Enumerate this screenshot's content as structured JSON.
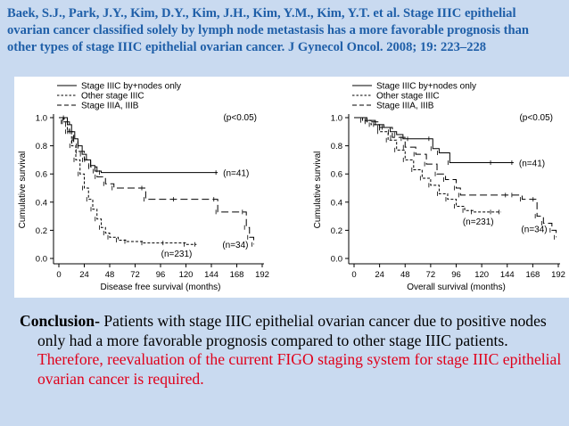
{
  "citation": "Baek, S.J., Park, J.Y., Kim, D.Y., Kim, J.H., Kim, Y.M., Kim, Y.T. et al. Stage IIIC epithelial ovarian cancer classified solely by lymph node metastasis has a more favorable prognosis than other types of stage IIIC epithelial ovarian cancer. J Gynecol Oncol. 2008; 19: 223–228",
  "conclusion": {
    "lead": "Conclusion-",
    "body": " Patients with stage IIIC epithelial ovarian cancer due to positive nodes only had a more favorable prognosis compared to other stage IIIC patients. ",
    "highlight": "Therefore, reevaluation of the current FIGO staging system for stage IIIC epithelial ovarian cancer is required."
  },
  "colors": {
    "background": "#c9daf0",
    "citation": "#1f5fa8",
    "highlight": "#e0001a"
  },
  "chart_data": [
    {
      "type": "line",
      "xlabel": "Disease free survival (months)",
      "ylabel": "Cumulative survival",
      "xticks": [
        0,
        24,
        48,
        72,
        96,
        120,
        144,
        168,
        192
      ],
      "yticks": [
        "0.0",
        "0.2",
        "0.4",
        "0.6",
        "0.8",
        "1.0"
      ],
      "xlim": [
        0,
        192
      ],
      "ylim": [
        0,
        1
      ],
      "pvalue": "(p<0.05)",
      "series": [
        {
          "name": "Stage IIIC by+nodes only",
          "style": "solid",
          "label": "(n=41)",
          "points": [
            [
              0,
              1.0
            ],
            [
              6,
              1.0
            ],
            [
              8,
              0.95
            ],
            [
              12,
              0.9
            ],
            [
              15,
              0.85
            ],
            [
              18,
              0.8
            ],
            [
              22,
              0.74
            ],
            [
              26,
              0.7
            ],
            [
              30,
              0.66
            ],
            [
              34,
              0.62
            ],
            [
              40,
              0.61
            ],
            [
              150,
              0.61
            ]
          ]
        },
        {
          "name": "Other stage IIIC",
          "style": "dashed",
          "label": "(n=231)",
          "points": [
            [
              0,
              1.0
            ],
            [
              4,
              0.97
            ],
            [
              8,
              0.9
            ],
            [
              12,
              0.8
            ],
            [
              16,
              0.7
            ],
            [
              20,
              0.6
            ],
            [
              24,
              0.5
            ],
            [
              28,
              0.42
            ],
            [
              32,
              0.35
            ],
            [
              36,
              0.28
            ],
            [
              40,
              0.22
            ],
            [
              44,
              0.18
            ],
            [
              48,
              0.15
            ],
            [
              56,
              0.13
            ],
            [
              64,
              0.12
            ],
            [
              80,
              0.11
            ],
            [
              100,
              0.11
            ],
            [
              120,
              0.1
            ],
            [
              130,
              0.1
            ]
          ]
        },
        {
          "name": "Stage IIIA, IIIB",
          "style": "long-dashed",
          "label": "(n=34)",
          "points": [
            [
              0,
              1.0
            ],
            [
              5,
              0.97
            ],
            [
              10,
              0.9
            ],
            [
              14,
              0.83
            ],
            [
              18,
              0.76
            ],
            [
              24,
              0.7
            ],
            [
              30,
              0.65
            ],
            [
              36,
              0.58
            ],
            [
              44,
              0.53
            ],
            [
              52,
              0.5
            ],
            [
              80,
              0.5
            ],
            [
              82,
              0.42
            ],
            [
              110,
              0.42
            ],
            [
              148,
              0.42
            ],
            [
              150,
              0.33
            ],
            [
              175,
              0.33
            ],
            [
              177,
              0.22
            ],
            [
              180,
              0.15
            ],
            [
              184,
              0.1
            ]
          ]
        }
      ]
    },
    {
      "type": "line",
      "xlabel": "Overall survival (months)",
      "ylabel": "Cumulative survival",
      "xticks": [
        0,
        24,
        48,
        72,
        96,
        120,
        144,
        168,
        192
      ],
      "yticks": [
        "0.0",
        "0.2",
        "0.4",
        "0.6",
        "0.8",
        "1.0"
      ],
      "xlim": [
        0,
        192
      ],
      "ylim": [
        0,
        1
      ],
      "pvalue": "(p<0.05)",
      "series": [
        {
          "name": "Stage IIIC by+nodes only",
          "style": "solid",
          "label": "(n=41)",
          "points": [
            [
              0,
              1.0
            ],
            [
              12,
              0.98
            ],
            [
              20,
              0.95
            ],
            [
              28,
              0.93
            ],
            [
              34,
              0.9
            ],
            [
              40,
              0.88
            ],
            [
              46,
              0.85
            ],
            [
              52,
              0.85
            ],
            [
              72,
              0.85
            ],
            [
              74,
              0.78
            ],
            [
              80,
              0.75
            ],
            [
              90,
              0.68
            ],
            [
              130,
              0.68
            ],
            [
              150,
              0.68
            ]
          ]
        },
        {
          "name": "Other stage IIIC",
          "style": "dashed",
          "label": "(n=231)",
          "points": [
            [
              0,
              1.0
            ],
            [
              8,
              0.98
            ],
            [
              16,
              0.95
            ],
            [
              24,
              0.9
            ],
            [
              32,
              0.84
            ],
            [
              40,
              0.77
            ],
            [
              48,
              0.7
            ],
            [
              56,
              0.63
            ],
            [
              64,
              0.57
            ],
            [
              72,
              0.52
            ],
            [
              80,
              0.46
            ],
            [
              88,
              0.42
            ],
            [
              96,
              0.37
            ],
            [
              104,
              0.34
            ],
            [
              112,
              0.33
            ],
            [
              130,
              0.33
            ],
            [
              138,
              0.33
            ]
          ]
        },
        {
          "name": "Stage IIIA, IIIB",
          "style": "long-dashed",
          "label": "(n=34)",
          "points": [
            [
              0,
              1.0
            ],
            [
              12,
              0.97
            ],
            [
              24,
              0.93
            ],
            [
              36,
              0.86
            ],
            [
              48,
              0.79
            ],
            [
              58,
              0.74
            ],
            [
              68,
              0.67
            ],
            [
              78,
              0.6
            ],
            [
              86,
              0.56
            ],
            [
              96,
              0.5
            ],
            [
              100,
              0.45
            ],
            [
              144,
              0.45
            ],
            [
              150,
              0.45
            ],
            [
              158,
              0.42
            ],
            [
              170,
              0.42
            ],
            [
              172,
              0.3
            ],
            [
              178,
              0.25
            ],
            [
              186,
              0.2
            ],
            [
              190,
              0.15
            ]
          ]
        }
      ]
    }
  ]
}
